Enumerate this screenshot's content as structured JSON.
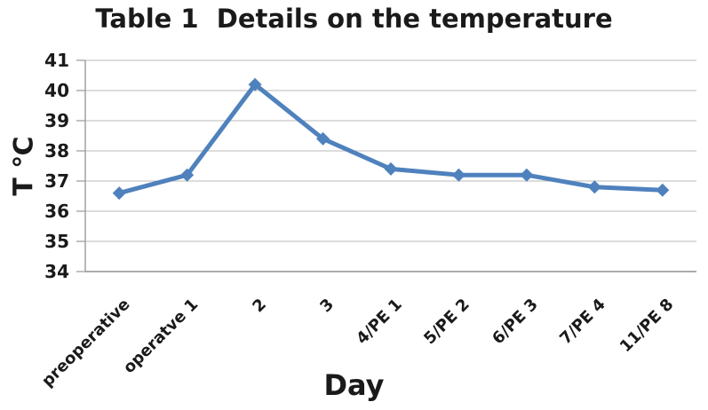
{
  "chart_data": {
    "type": "line",
    "title": "Table 1  Details on the temperature",
    "xlabel": "Day",
    "ylabel": "T ℃",
    "categories": [
      "preoperative",
      "operatve 1",
      "2",
      "3",
      "4/PE 1",
      "5/PE 2",
      "6/PE 3",
      "7/PE 4",
      "11/PE 8"
    ],
    "values": [
      36.6,
      37.2,
      40.2,
      38.4,
      37.4,
      37.2,
      37.2,
      36.8,
      36.7
    ],
    "ylim": [
      34,
      41
    ],
    "y_ticks": [
      41,
      40,
      39,
      38,
      37,
      36,
      35,
      34
    ],
    "grid": true,
    "legend": false,
    "marker": "diamond",
    "x_tick_rotation_deg": -45,
    "colors": {
      "line": "#4F81BD",
      "marker": "#4F81BD",
      "gridline": "#C6C6C6",
      "axis": "#A0A0A0",
      "text": "#1A1A1A"
    }
  }
}
